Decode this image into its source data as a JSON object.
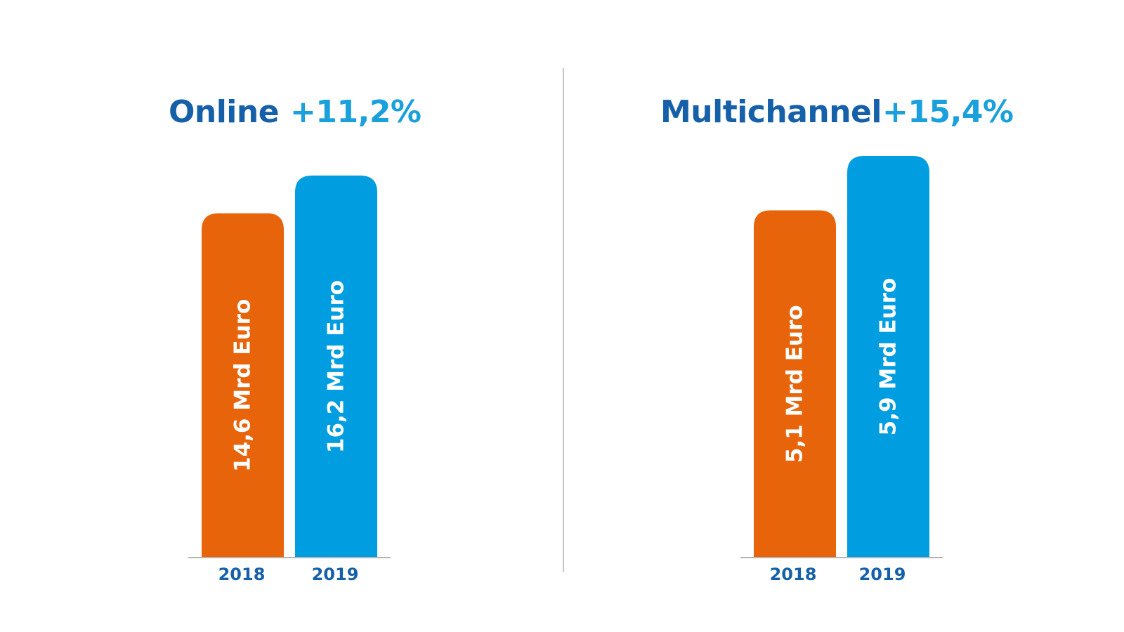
{
  "colors": {
    "title": "#1560a8",
    "change": "#1aa0dc",
    "bar_2018": "#e8640a",
    "bar_2019": "#009ee0",
    "baseline": "#b4b4b4",
    "divider": "#c4c4c4",
    "tick": "#1560a8"
  },
  "chart_data": [
    {
      "type": "bar",
      "title": "Online",
      "change": "+11,2%",
      "categories": [
        "2018",
        "2019"
      ],
      "values": [
        14.6,
        16.2
      ],
      "value_labels": [
        "14,6 Mrd Euro",
        "16,2 Mrd Euro"
      ],
      "unit": "Mrd Euro",
      "grid": false
    },
    {
      "type": "bar",
      "title": "Multichannel",
      "change": "+15,4%",
      "categories": [
        "2018",
        "2019"
      ],
      "values": [
        5.1,
        5.9
      ],
      "value_labels": [
        "5,1 Mrd Euro",
        "5,9 Mrd Euro"
      ],
      "unit": "Mrd Euro",
      "grid": false
    }
  ]
}
